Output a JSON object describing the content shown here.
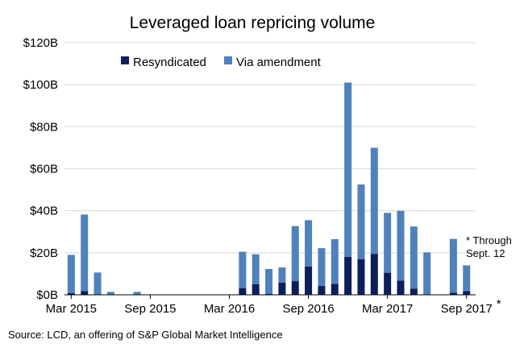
{
  "chart_data": {
    "type": "bar",
    "stacked": true,
    "title": "Leveraged loan repricing volume",
    "xlabel": "",
    "ylabel": "",
    "ylim": [
      0,
      120
    ],
    "y_ticks": [
      "$0B",
      "$20B",
      "$40B",
      "$60B",
      "$80B",
      "$100B",
      "$120B"
    ],
    "x_ticks": [
      "Mar 2015",
      "Sep 2015",
      "Mar 2016",
      "Sep 2016",
      "Mar 2017",
      "Sep 2017"
    ],
    "x_tick_suffix": "*",
    "categories": [
      "Mar 2015",
      "Apr 2015",
      "May 2015",
      "Jun 2015",
      "Jul 2015",
      "Aug 2015",
      "Sep 2015",
      "Oct 2015",
      "Nov 2015",
      "Dec 2015",
      "Jan 2016",
      "Feb 2016",
      "Mar 2016",
      "Apr 2016",
      "May 2016",
      "Jun 2016",
      "Jul 2016",
      "Aug 2016",
      "Sep 2016",
      "Oct 2016",
      "Nov 2016",
      "Dec 2016",
      "Jan 2017",
      "Feb 2017",
      "Mar 2017",
      "Apr 2017",
      "May 2017",
      "Jun 2017",
      "Jul 2017",
      "Aug 2017",
      "Sep 2017"
    ],
    "series": [
      {
        "name": "Resyndicated",
        "color": "#0b2059",
        "values": [
          0.8,
          1.8,
          0,
          0,
          0,
          0,
          0,
          0,
          0,
          0,
          0,
          0,
          0,
          3.2,
          5,
          0.5,
          5.8,
          6.5,
          13.5,
          4.2,
          5.2,
          18,
          17,
          19.5,
          10.5,
          6.8,
          3,
          0,
          0,
          1,
          1.8
        ]
      },
      {
        "name": "Via amendment",
        "color": "#4f81bd",
        "values": [
          18.2,
          36.4,
          10.6,
          1.4,
          0,
          1.4,
          0,
          0,
          0,
          0,
          0,
          0,
          0,
          17.3,
          14.3,
          11.8,
          7.2,
          26.2,
          22,
          18,
          21.3,
          83,
          35.5,
          50.5,
          28.5,
          33.2,
          29.5,
          20.2,
          0,
          25.6,
          12.2
        ]
      }
    ],
    "legend_position": "top-left",
    "grid": "horizontal",
    "annotation": "* Through Sept. 12",
    "annotation_lines": [
      "* Through",
      "Sept. 12"
    ]
  },
  "source": "Source: LCD, an offering of S&P Global Market Intelligence"
}
